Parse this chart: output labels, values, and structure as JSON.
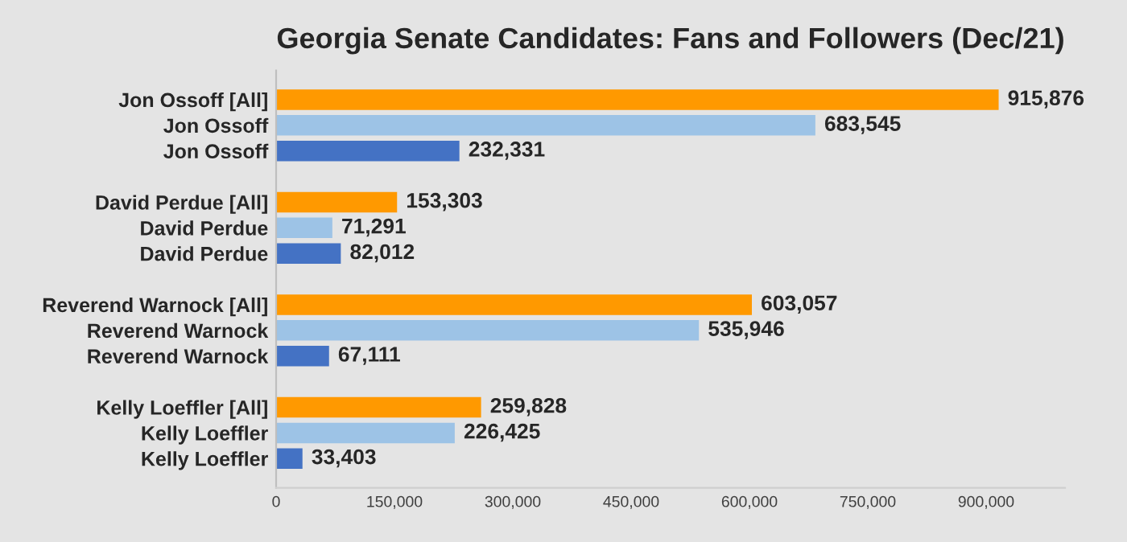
{
  "chart_data": {
    "type": "bar",
    "orientation": "horizontal",
    "title": "Georgia Senate Candidates: Fans and Followers (Dec/21)",
    "categories": [
      "Jon Ossoff [All]",
      "Jon Ossoff",
      "Jon Ossoff",
      null,
      "David Perdue [All]",
      "David Perdue",
      "David Perdue",
      null,
      "Reverend Warnock [All]",
      "Reverend Warnock",
      "Reverend Warnock",
      null,
      "Kelly Loeffler [All]",
      "Kelly Loeffler",
      "Kelly Loeffler"
    ],
    "values": [
      915876,
      683545,
      232331,
      null,
      153303,
      71291,
      82012,
      null,
      603057,
      535946,
      67111,
      null,
      259828,
      226425,
      33403
    ],
    "colors": [
      "#ff9900",
      "#9dc3e6",
      "#4472c4",
      null,
      "#ff9900",
      "#9dc3e6",
      "#4472c4",
      null,
      "#ff9900",
      "#9dc3e6",
      "#4472c4",
      null,
      "#ff9900",
      "#9dc3e6",
      "#4472c4"
    ],
    "value_labels": [
      "915,876",
      "683,545",
      "232,331",
      null,
      "153,303",
      "71,291",
      "82,012",
      null,
      "603,057",
      "535,946",
      "67,111",
      null,
      "259,828",
      "226,425",
      "33,403"
    ],
    "xlim": [
      0,
      1000000
    ],
    "xticks": [
      {
        "value": 0,
        "label": "0"
      },
      {
        "value": 150000,
        "label": "150,000"
      },
      {
        "value": 300000,
        "label": "300,000"
      },
      {
        "value": 450000,
        "label": "450,000"
      },
      {
        "value": 600000,
        "label": "600,000"
      },
      {
        "value": 750000,
        "label": "750,000"
      },
      {
        "value": 900000,
        "label": "900,000"
      }
    ],
    "grid": false,
    "legend": false
  }
}
